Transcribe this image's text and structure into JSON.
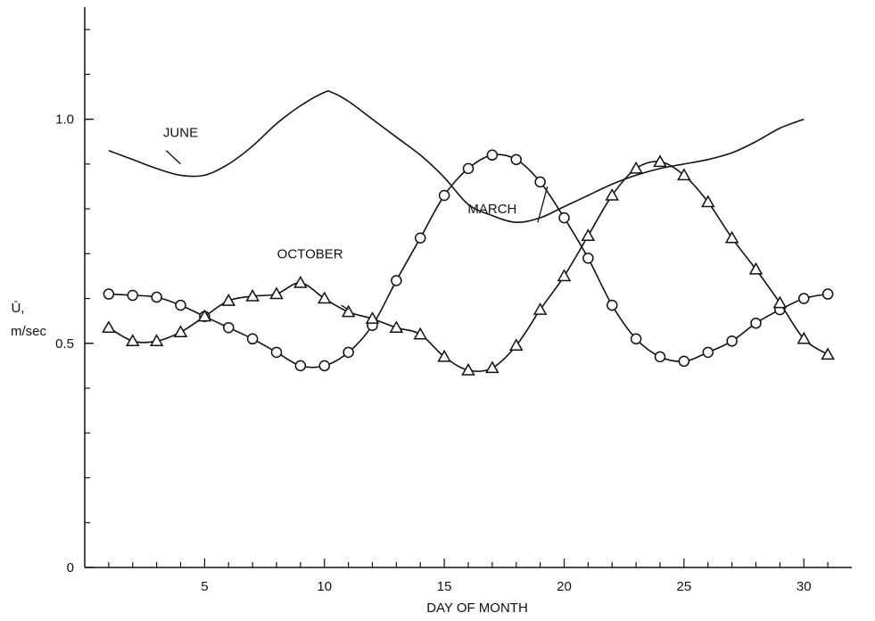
{
  "chart_data": {
    "type": "line",
    "title": "",
    "xlabel": "DAY OF MONTH",
    "ylabel_symbol": "Ū,",
    "ylabel_unit": "m/sec",
    "xlim": [
      0,
      32
    ],
    "ylim": [
      0,
      1.25
    ],
    "x_ticks": [
      5,
      10,
      15,
      20,
      25,
      30
    ],
    "y_ticks": [
      "0",
      "0.5",
      "1.0"
    ],
    "y_tick_values": [
      0,
      0.5,
      1.0
    ],
    "y_minor_step": 0.1,
    "x_minor_step": 1,
    "grid": false,
    "series": [
      {
        "name": "JUNE",
        "marker": "none",
        "x": [
          1,
          2,
          3,
          4,
          5,
          6,
          7,
          8,
          9,
          10,
          10.3,
          11,
          12,
          13,
          14,
          15,
          16,
          17,
          18,
          19,
          20,
          21,
          22,
          23,
          24,
          25,
          26,
          27,
          28,
          29,
          30
        ],
        "y": [
          0.93,
          0.91,
          0.89,
          0.875,
          0.875,
          0.9,
          0.94,
          0.99,
          1.03,
          1.06,
          1.06,
          1.04,
          1.0,
          0.96,
          0.92,
          0.87,
          0.81,
          0.785,
          0.77,
          0.78,
          0.805,
          0.83,
          0.855,
          0.875,
          0.89,
          0.9,
          0.91,
          0.925,
          0.95,
          0.98,
          1.0
        ]
      },
      {
        "name": "MARCH",
        "marker": "circle",
        "x": [
          1,
          2,
          3,
          4,
          5,
          6,
          7,
          8,
          9,
          10,
          11,
          12,
          13,
          14,
          15,
          16,
          17,
          18,
          19,
          20,
          21,
          22,
          23,
          24,
          25,
          26,
          27,
          28,
          29,
          30,
          31
        ],
        "y": [
          0.61,
          0.607,
          0.603,
          0.585,
          0.56,
          0.535,
          0.51,
          0.48,
          0.45,
          0.45,
          0.48,
          0.54,
          0.64,
          0.735,
          0.83,
          0.89,
          0.92,
          0.91,
          0.86,
          0.78,
          0.69,
          0.585,
          0.51,
          0.47,
          0.46,
          0.48,
          0.505,
          0.545,
          0.575,
          0.6,
          0.61
        ]
      },
      {
        "name": "OCTOBER",
        "marker": "triangle",
        "x": [
          1,
          2,
          3,
          4,
          5,
          6,
          7,
          8,
          9,
          10,
          11,
          12,
          13,
          14,
          15,
          16,
          17,
          18,
          19,
          20,
          21,
          22,
          23,
          24,
          25,
          26,
          27,
          28,
          29,
          30,
          31
        ],
        "y": [
          0.535,
          0.505,
          0.505,
          0.525,
          0.56,
          0.595,
          0.605,
          0.61,
          0.635,
          0.6,
          0.57,
          0.555,
          0.535,
          0.52,
          0.47,
          0.44,
          0.445,
          0.495,
          0.575,
          0.65,
          0.74,
          0.83,
          0.89,
          0.905,
          0.875,
          0.815,
          0.735,
          0.665,
          0.59,
          0.51,
          0.475
        ]
      }
    ],
    "annotations": [
      {
        "text": "JUNE",
        "x": 4.0,
        "y": 0.96
      },
      {
        "text": "MARCH",
        "x": 17.0,
        "y": 0.79
      },
      {
        "text": "OCTOBER",
        "x": 9.4,
        "y": 0.69
      }
    ]
  }
}
